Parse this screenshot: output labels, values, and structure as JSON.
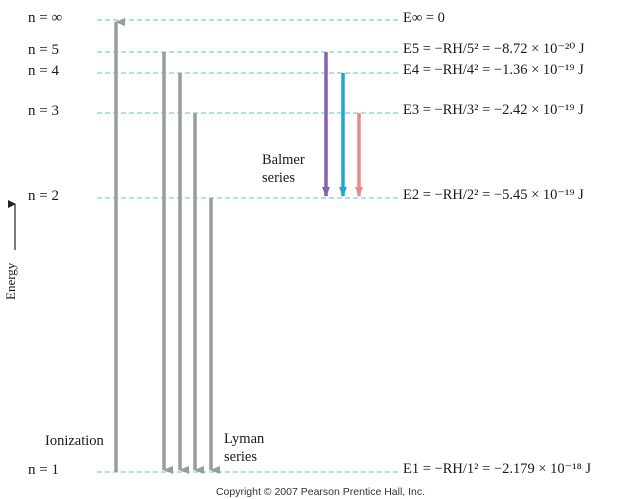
{
  "axis_label": "Energy",
  "levels": [
    {
      "n_label": "n = ∞",
      "energy_label": "E∞ = 0"
    },
    {
      "n_label": "n = 5",
      "energy_label": "E5 = −RH/5² = −8.72 × 10⁻²⁰ J"
    },
    {
      "n_label": "n = 4",
      "energy_label": "E4 = −RH/4² = −1.36 × 10⁻¹⁹ J"
    },
    {
      "n_label": "n = 3",
      "energy_label": "E3 = −RH/3² = −2.42 × 10⁻¹⁹ J"
    },
    {
      "n_label": "n = 2",
      "energy_label": "E2 = −RH/2² = −5.45 × 10⁻¹⁹ J"
    },
    {
      "n_label": "n = 1",
      "energy_label": "E1 = −RH/1² = −2.179 × 10⁻¹⁸ J"
    }
  ],
  "labels": {
    "ionization": "Ionization",
    "lyman": [
      "Lyman",
      "series"
    ],
    "balmer": [
      "Balmer",
      "series"
    ]
  },
  "colors": {
    "level_line": "#5fbfd6",
    "gray_arrow": "#9b9b9b",
    "balmer_5": "#8a5fb0",
    "balmer_4": "#1fa6d3",
    "balmer_3": "#e88a8a"
  },
  "copyright": "Copyright © 2007 Pearson Prentice Hall, Inc."
}
